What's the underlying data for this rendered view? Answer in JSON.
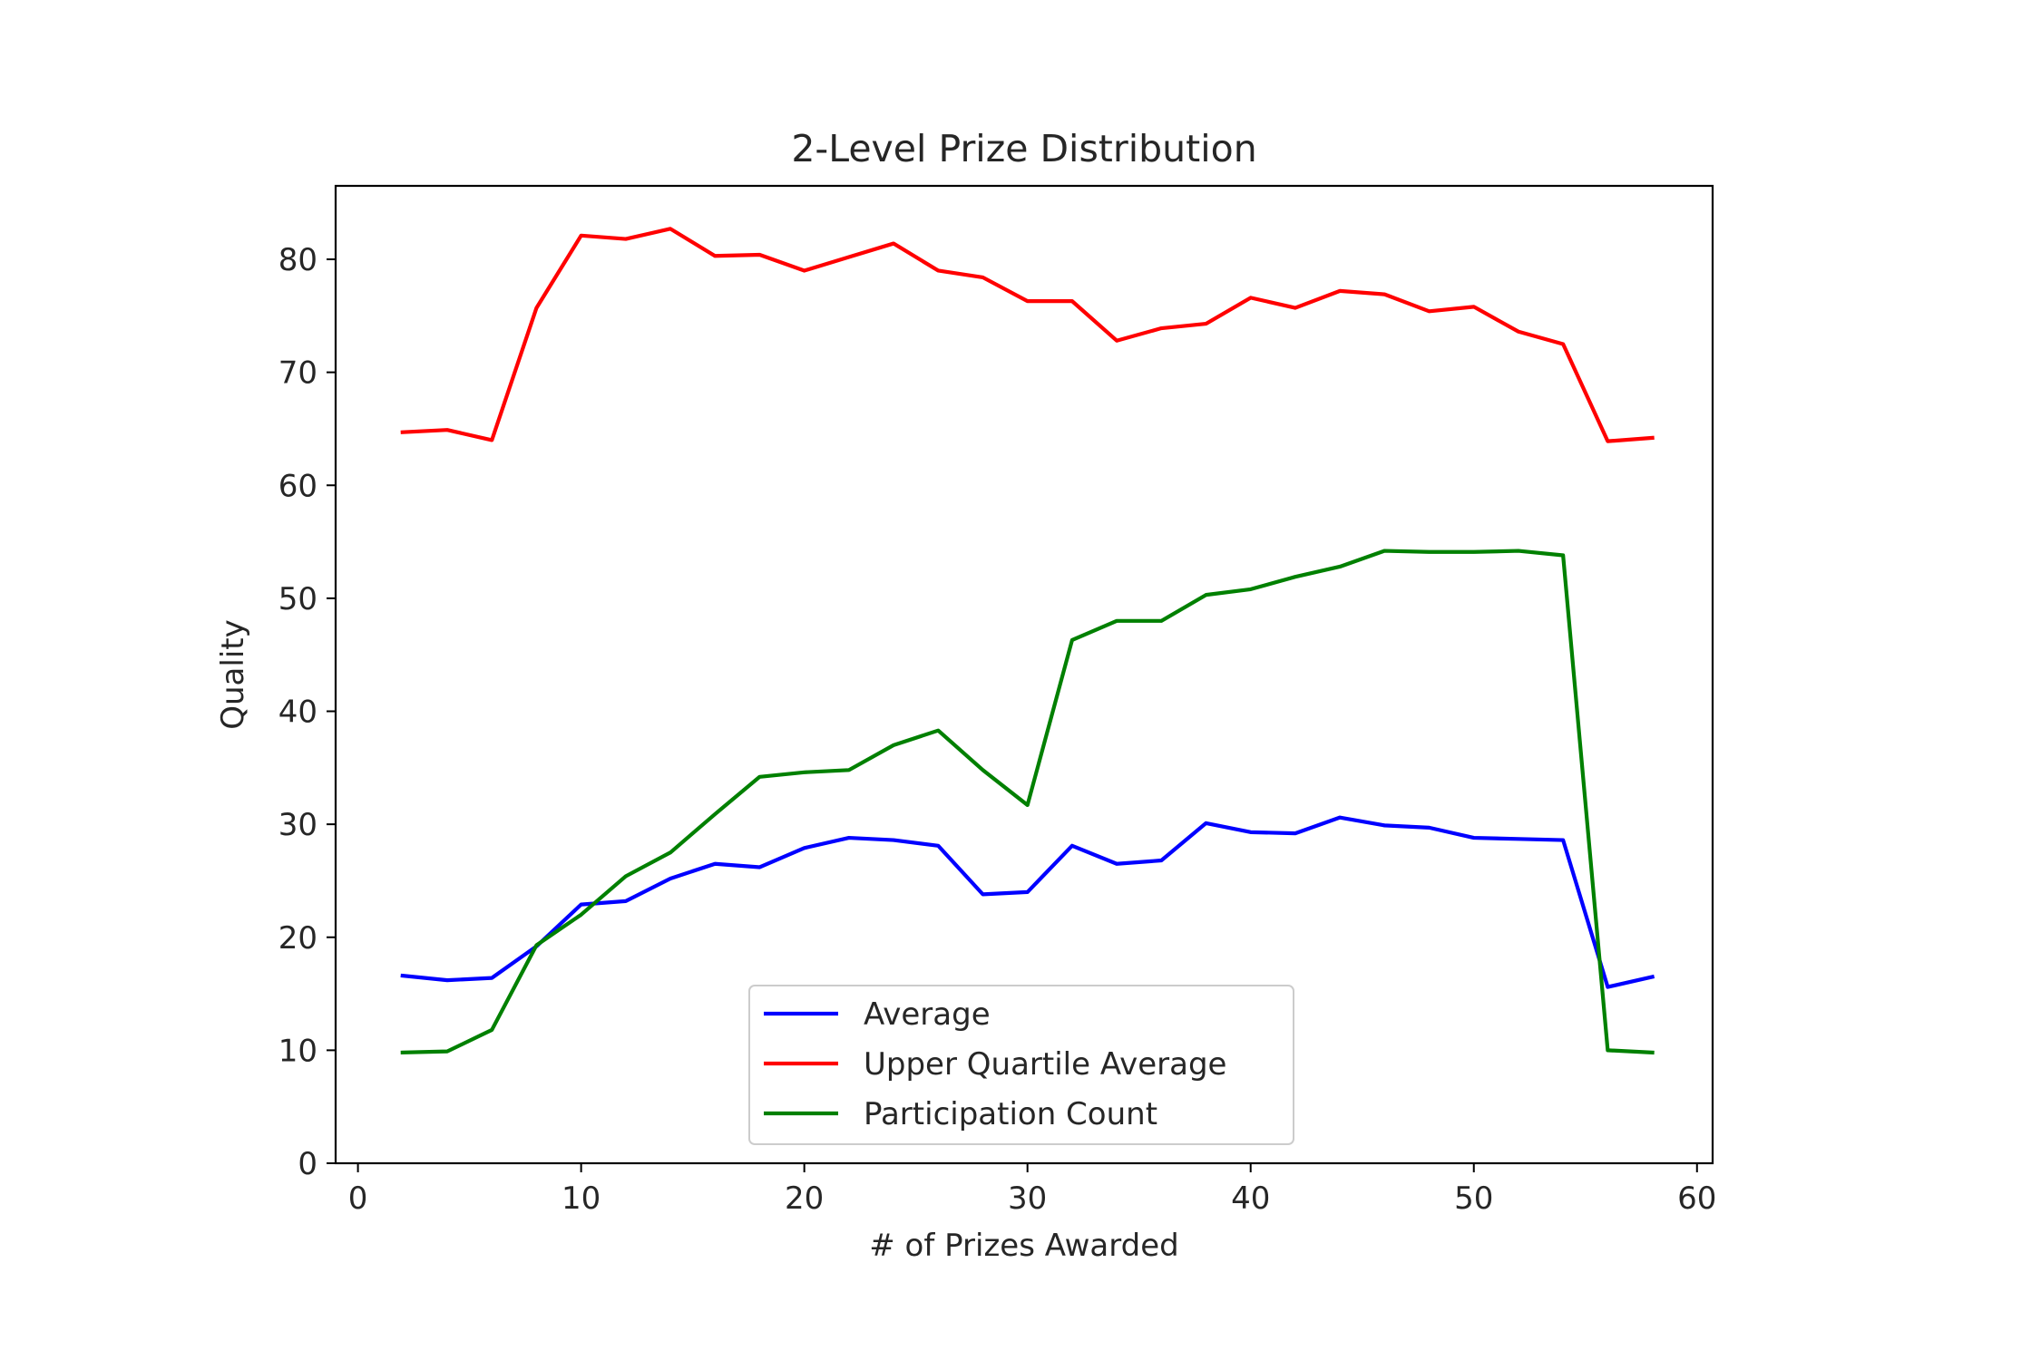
{
  "chart_data": {
    "type": "line",
    "title": "2-Level Prize Distribution",
    "xlabel": "# of Prizes Awarded",
    "ylabel": "Quality",
    "xlim": [
      -1,
      60.7
    ],
    "ylim": [
      0,
      86.5
    ],
    "xticks": [
      0,
      10,
      20,
      30,
      40,
      50,
      60
    ],
    "yticks": [
      0,
      10,
      20,
      30,
      40,
      50,
      60,
      70,
      80
    ],
    "grid": false,
    "legend_position": "lower center",
    "x": [
      2,
      4,
      6,
      8,
      10,
      12,
      14,
      16,
      18,
      20,
      22,
      24,
      26,
      28,
      30,
      32,
      34,
      36,
      38,
      40,
      42,
      44,
      46,
      48,
      50,
      52,
      54,
      56,
      58
    ],
    "series": [
      {
        "name": "Average",
        "color": "#0000ff",
        "values": [
          16.6,
          16.2,
          16.4,
          19.2,
          22.9,
          23.2,
          25.2,
          26.5,
          26.2,
          27.9,
          28.8,
          28.6,
          28.1,
          23.8,
          24.0,
          28.1,
          26.5,
          26.8,
          30.1,
          29.3,
          29.2,
          30.6,
          29.9,
          29.7,
          28.8,
          28.7,
          28.6,
          15.6,
          16.5
        ]
      },
      {
        "name": "Upper Quartile Average",
        "color": "#ff0000",
        "values": [
          64.7,
          64.9,
          64.0,
          75.7,
          82.1,
          81.8,
          82.7,
          80.3,
          80.4,
          79.0,
          80.2,
          81.4,
          79.0,
          78.4,
          76.3,
          76.3,
          72.8,
          73.9,
          74.3,
          76.6,
          75.7,
          77.2,
          76.9,
          75.4,
          75.8,
          73.6,
          72.5,
          63.9,
          64.2
        ]
      },
      {
        "name": "Participation Count",
        "color": "#008000",
        "values": [
          9.8,
          9.9,
          11.8,
          19.3,
          22.0,
          25.4,
          27.5,
          30.9,
          34.2,
          34.6,
          34.8,
          37.0,
          38.3,
          34.8,
          31.7,
          46.3,
          48.0,
          48.0,
          50.3,
          50.8,
          51.9,
          52.8,
          54.2,
          54.1,
          54.1,
          54.2,
          53.8,
          10.0,
          9.8
        ]
      }
    ]
  }
}
